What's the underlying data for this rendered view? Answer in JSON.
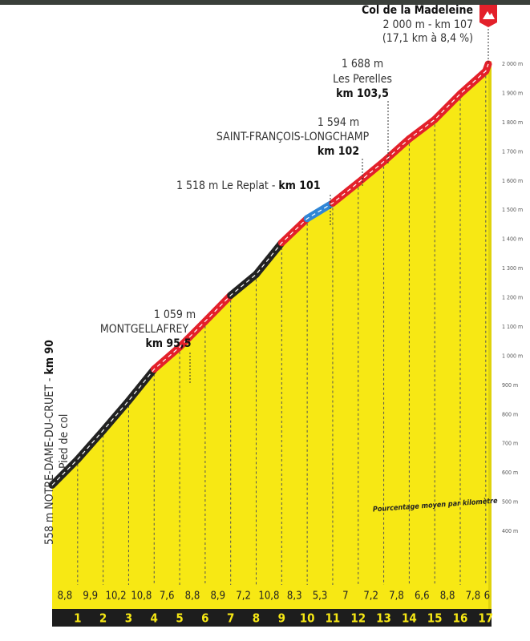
{
  "chart_data": {
    "type": "area",
    "title": "Col de la Madeleine",
    "subtitle": [
      "2 000 m - km 107",
      "(17,1 km à 8,4 %)"
    ],
    "x": [
      0,
      1,
      2,
      3,
      4,
      5,
      6,
      7,
      8,
      9,
      10,
      11,
      12,
      13,
      14,
      15,
      16,
      17,
      17.1
    ],
    "values": [
      558,
      646,
      745,
      847,
      955,
      1031,
      1119,
      1208,
      1280,
      1388,
      1471,
      1524,
      1594,
      1666,
      1744,
      1810,
      1898,
      1976,
      2000
    ],
    "xlim": [
      0,
      17.1
    ],
    "xticks": [
      1,
      2,
      3,
      4,
      5,
      6,
      7,
      8,
      9,
      10,
      11,
      12,
      13,
      14,
      15,
      16,
      17
    ],
    "ylim": [
      400,
      2000
    ],
    "yticks": [
      {
        "value": 400,
        "label": "400 m"
      },
      {
        "value": 500,
        "label": "500 m"
      },
      {
        "value": 600,
        "label": "600 m"
      },
      {
        "value": 700,
        "label": "700 m"
      },
      {
        "value": 800,
        "label": "800 m"
      },
      {
        "value": 900,
        "label": "900 m"
      },
      {
        "value": 1000,
        "label": "1 000 m"
      },
      {
        "value": 1100,
        "label": "1 100 m"
      },
      {
        "value": 1200,
        "label": "1 200 m"
      },
      {
        "value": 1300,
        "label": "1 300 m"
      },
      {
        "value": 1400,
        "label": "1 400 m"
      },
      {
        "value": 1500,
        "label": "1 500 m"
      },
      {
        "value": 1600,
        "label": "1 600 m"
      },
      {
        "value": 1700,
        "label": "1 700 m"
      },
      {
        "value": 1800,
        "label": "1 800 m"
      },
      {
        "value": 1900,
        "label": "1 900 m"
      },
      {
        "value": 2000,
        "label": "2 000 m"
      }
    ],
    "color": "#f7e814",
    "gradient_caption": "Pourcentage moyen par kilomètre",
    "gradients": [
      8.8,
      9.9,
      10.2,
      10.8,
      7.6,
      8.8,
      8.9,
      7.2,
      10.8,
      8.3,
      5.3,
      7,
      7.2,
      7.8,
      6.6,
      8.8,
      7.8,
      6
    ],
    "gradient_labels": [
      "8,8",
      "9,9",
      "10,2",
      "10,8",
      "7,6",
      "8,8",
      "8,9",
      "7,2",
      "10,8",
      "8,3",
      "5,3",
      "7",
      "7,2",
      "7,8",
      "6,6",
      "8,8",
      "7,8",
      "6"
    ],
    "segment_colors": [
      "#222222",
      "#222222",
      "#222222",
      "#222222",
      "#e3202a",
      "#e3202a",
      "#e3202a",
      "#222222",
      "#222222",
      "#e3202a",
      "#2f86d6",
      "#e3202a",
      "#e3202a",
      "#e3202a",
      "#e3202a",
      "#e3202a",
      "#e3202a",
      "#e3202a"
    ],
    "annotations": [
      {
        "lines": [
          "1 688 m",
          "Les Perelles",
          "km 103,5"
        ]
      },
      {
        "lines": [
          "1 594 m",
          "SAINT-FRANÇOIS-LONGCHAMP",
          "km 102"
        ]
      },
      {
        "lines": [
          "1 518 m Le Replat - ",
          "km 101"
        ]
      },
      {
        "lines": [
          "1 059 m",
          "MONTGELLAFREY",
          "km 95,5"
        ]
      },
      {
        "lines": [
          "558 m NOTRE-DAME-DU-CRUET - ",
          "km 90",
          "Pied de col"
        ]
      }
    ]
  }
}
